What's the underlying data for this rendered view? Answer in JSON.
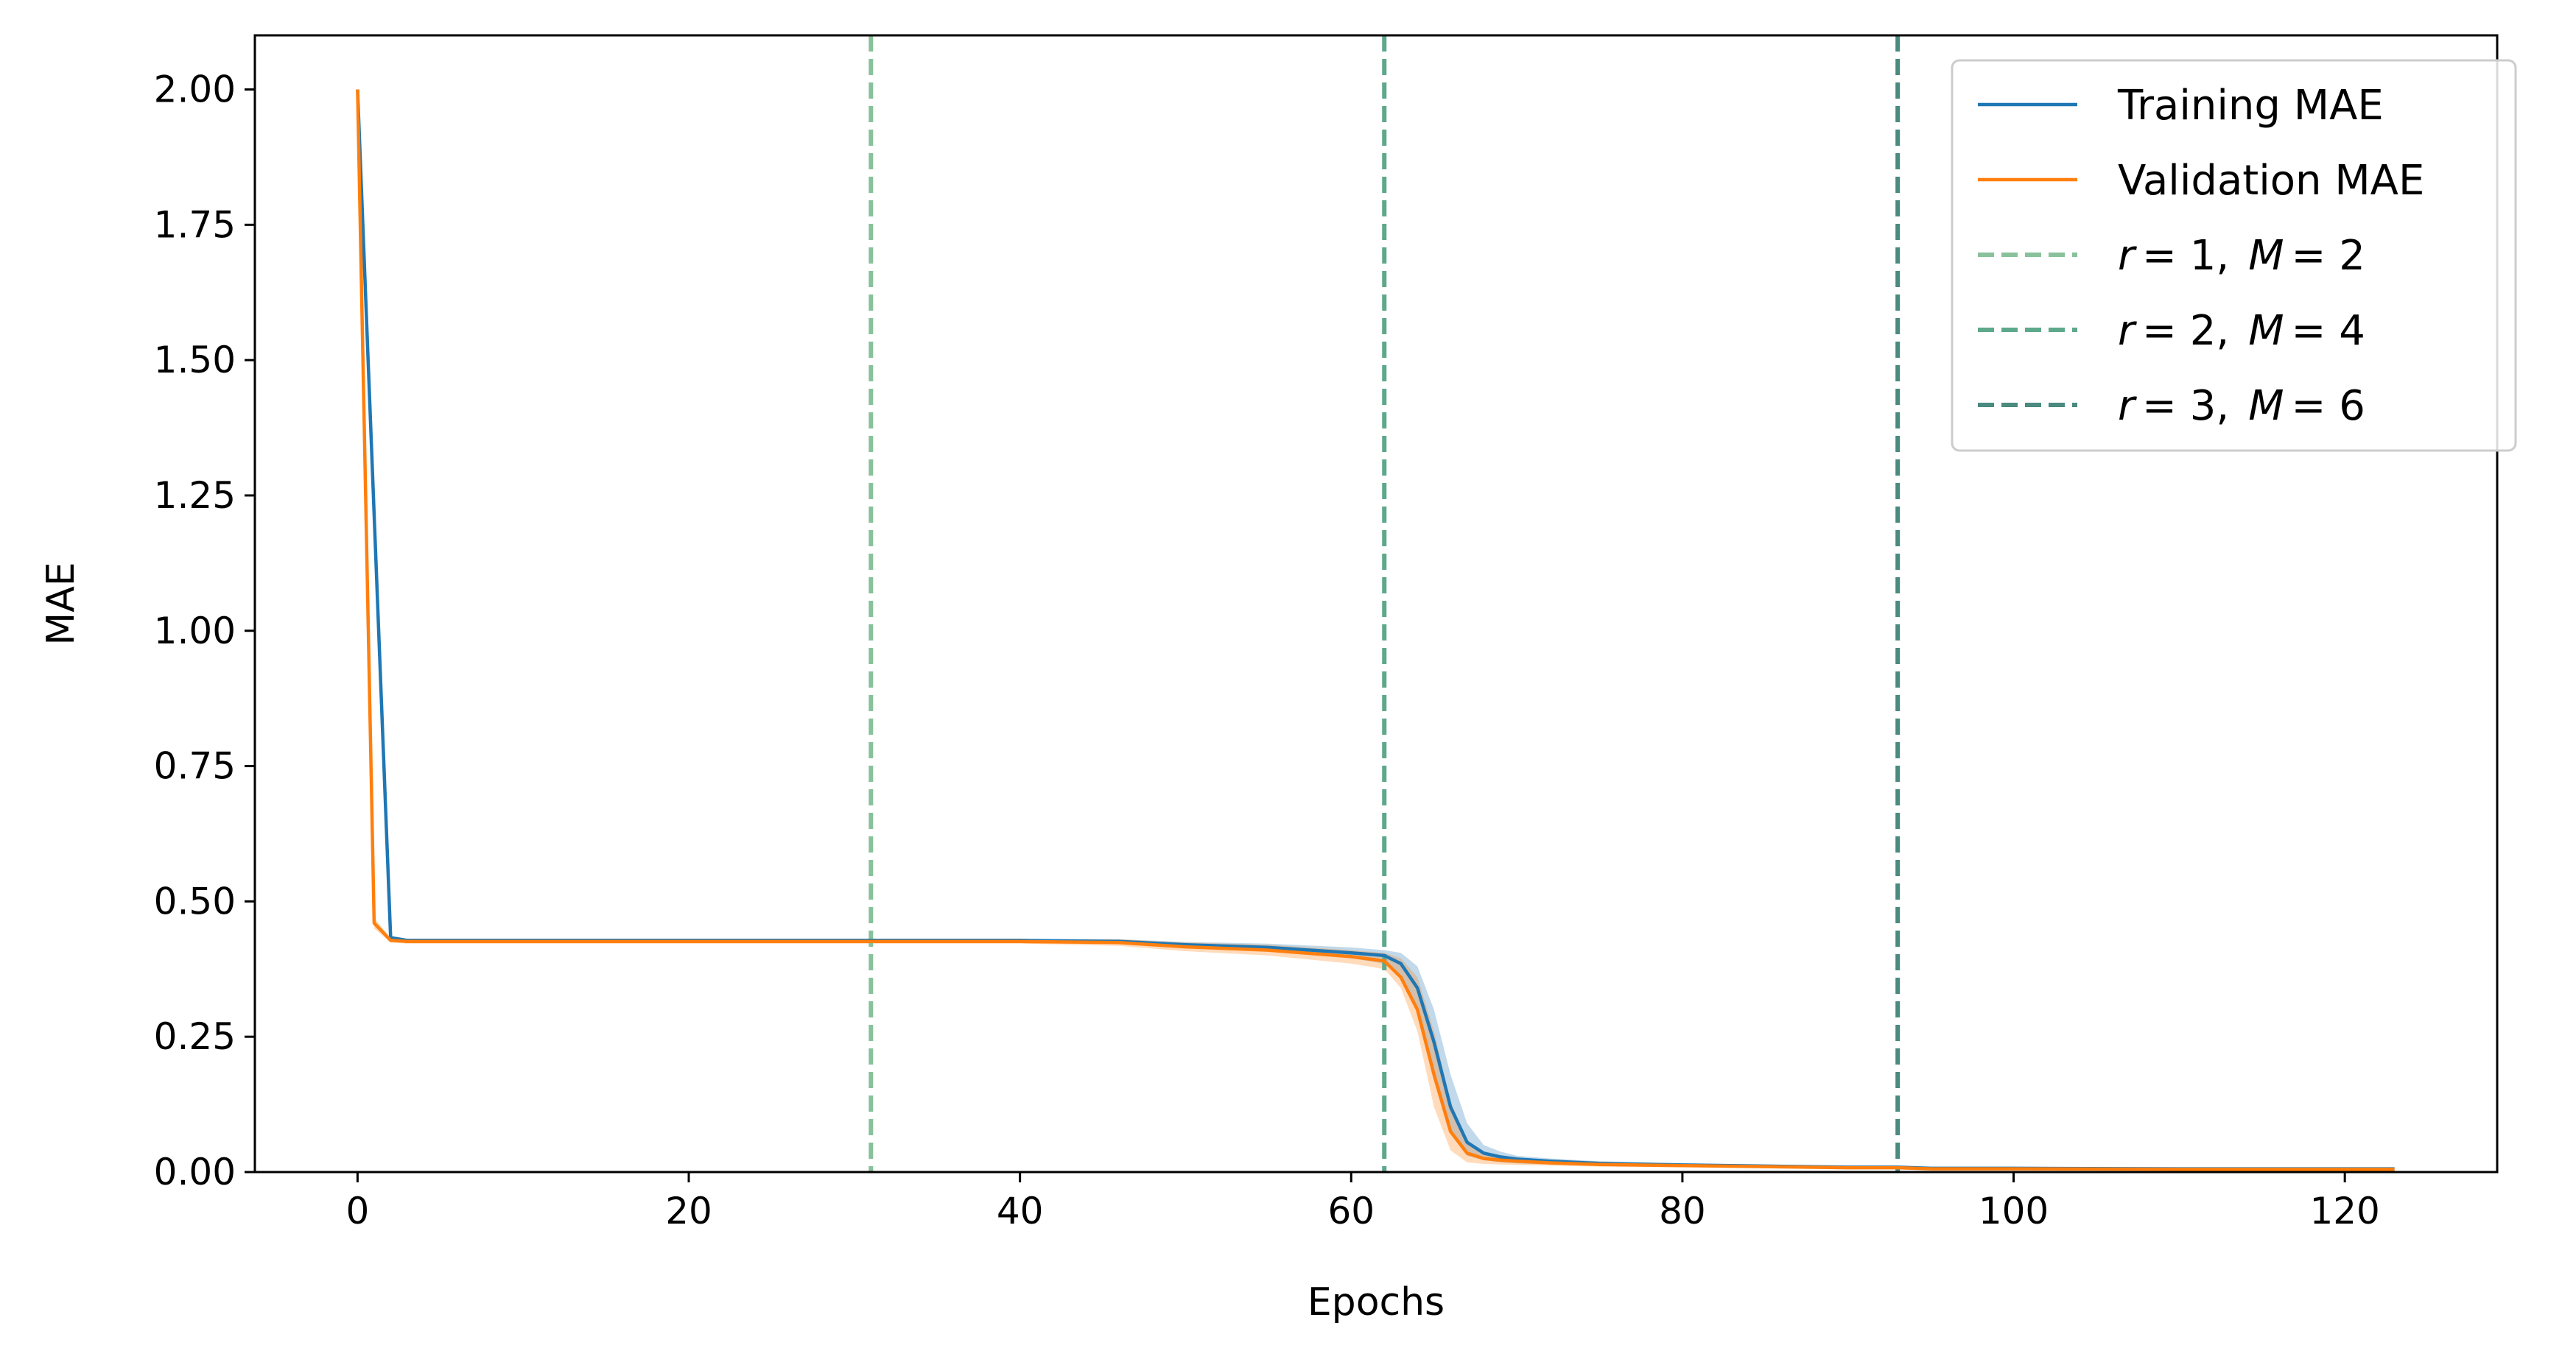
{
  "chart_data": {
    "type": "line",
    "xlabel": "Epochs",
    "ylabel": "MAE",
    "xlim": [
      -6.2,
      129.2
    ],
    "ylim": [
      0,
      2.1
    ],
    "xticks": [
      0,
      20,
      40,
      60,
      80,
      100,
      120
    ],
    "yticks": [
      0,
      0.25,
      0.5,
      0.75,
      1.0,
      1.25,
      1.5,
      1.75,
      2.0
    ],
    "ytick_labels": [
      "0.00",
      "0.25",
      "0.50",
      "0.75",
      "1.00",
      "1.25",
      "1.50",
      "1.75",
      "2.00"
    ],
    "legend_position": "top-right",
    "series": [
      {
        "name": "Training MAE",
        "color": "#1f77b4",
        "x": [
          0,
          2,
          3,
          5,
          10,
          20,
          30,
          40,
          46,
          50,
          55,
          60,
          62,
          63,
          64,
          65,
          66,
          67,
          68,
          69,
          70,
          72,
          75,
          80,
          85,
          90,
          93,
          95,
          100,
          110,
          123
        ],
        "y": [
          2.0,
          0.433,
          0.428,
          0.428,
          0.428,
          0.428,
          0.428,
          0.428,
          0.426,
          0.42,
          0.415,
          0.405,
          0.4,
          0.385,
          0.34,
          0.24,
          0.12,
          0.055,
          0.035,
          0.028,
          0.024,
          0.02,
          0.016,
          0.013,
          0.011,
          0.009,
          0.009,
          0.007,
          0.007,
          0.006,
          0.006
        ],
        "band_lo": [
          2.0,
          0.43,
          0.426,
          0.426,
          0.426,
          0.426,
          0.426,
          0.426,
          0.422,
          0.415,
          0.408,
          0.395,
          0.385,
          0.36,
          0.3,
          0.18,
          0.07,
          0.03,
          0.022,
          0.018,
          0.016,
          0.014,
          0.012,
          0.01,
          0.008,
          0.007,
          0.007,
          0.005,
          0.005,
          0.005,
          0.005
        ],
        "band_hi": [
          2.0,
          0.436,
          0.43,
          0.43,
          0.43,
          0.43,
          0.43,
          0.43,
          0.43,
          0.425,
          0.422,
          0.415,
          0.41,
          0.405,
          0.38,
          0.3,
          0.18,
          0.09,
          0.05,
          0.038,
          0.03,
          0.025,
          0.02,
          0.016,
          0.013,
          0.011,
          0.011,
          0.009,
          0.008,
          0.007,
          0.007
        ]
      },
      {
        "name": "Validation MAE",
        "color": "#ff7f0e",
        "x": [
          0,
          1,
          2,
          3,
          5,
          10,
          20,
          30,
          40,
          46,
          50,
          55,
          60,
          62,
          63,
          64,
          65,
          66,
          67,
          68,
          69,
          70,
          72,
          75,
          80,
          85,
          90,
          93,
          95,
          100,
          110,
          123
        ],
        "y": [
          2.0,
          0.46,
          0.428,
          0.426,
          0.426,
          0.426,
          0.426,
          0.426,
          0.426,
          0.424,
          0.416,
          0.41,
          0.398,
          0.39,
          0.36,
          0.3,
          0.18,
          0.075,
          0.035,
          0.025,
          0.022,
          0.02,
          0.017,
          0.014,
          0.012,
          0.01,
          0.008,
          0.008,
          0.006,
          0.006,
          0.005,
          0.005
        ],
        "band_lo": [
          2.0,
          0.45,
          0.424,
          0.422,
          0.422,
          0.422,
          0.422,
          0.422,
          0.422,
          0.418,
          0.408,
          0.4,
          0.385,
          0.375,
          0.34,
          0.26,
          0.12,
          0.04,
          0.018,
          0.015,
          0.014,
          0.013,
          0.012,
          0.01,
          0.009,
          0.008,
          0.006,
          0.006,
          0.004,
          0.004,
          0.004,
          0.004
        ],
        "band_hi": [
          2.0,
          0.47,
          0.432,
          0.43,
          0.43,
          0.43,
          0.43,
          0.43,
          0.43,
          0.43,
          0.424,
          0.42,
          0.41,
          0.405,
          0.395,
          0.36,
          0.26,
          0.13,
          0.06,
          0.035,
          0.028,
          0.025,
          0.021,
          0.018,
          0.015,
          0.012,
          0.01,
          0.01,
          0.008,
          0.008,
          0.006,
          0.006
        ]
      }
    ],
    "vlines": [
      {
        "x": 31,
        "color": "#88c19a",
        "label_r": "r",
        "label_r_val": "= 1,",
        "label_m": "M",
        "label_m_val": "= 2"
      },
      {
        "x": 62,
        "color": "#5ea88b",
        "label_r": "r",
        "label_r_val": "= 2,",
        "label_m": "M",
        "label_m_val": "= 4"
      },
      {
        "x": 93,
        "color": "#4a8a7f",
        "label_r": "r",
        "label_r_val": "= 3,",
        "label_m": "M",
        "label_m_val": "= 6"
      }
    ]
  }
}
